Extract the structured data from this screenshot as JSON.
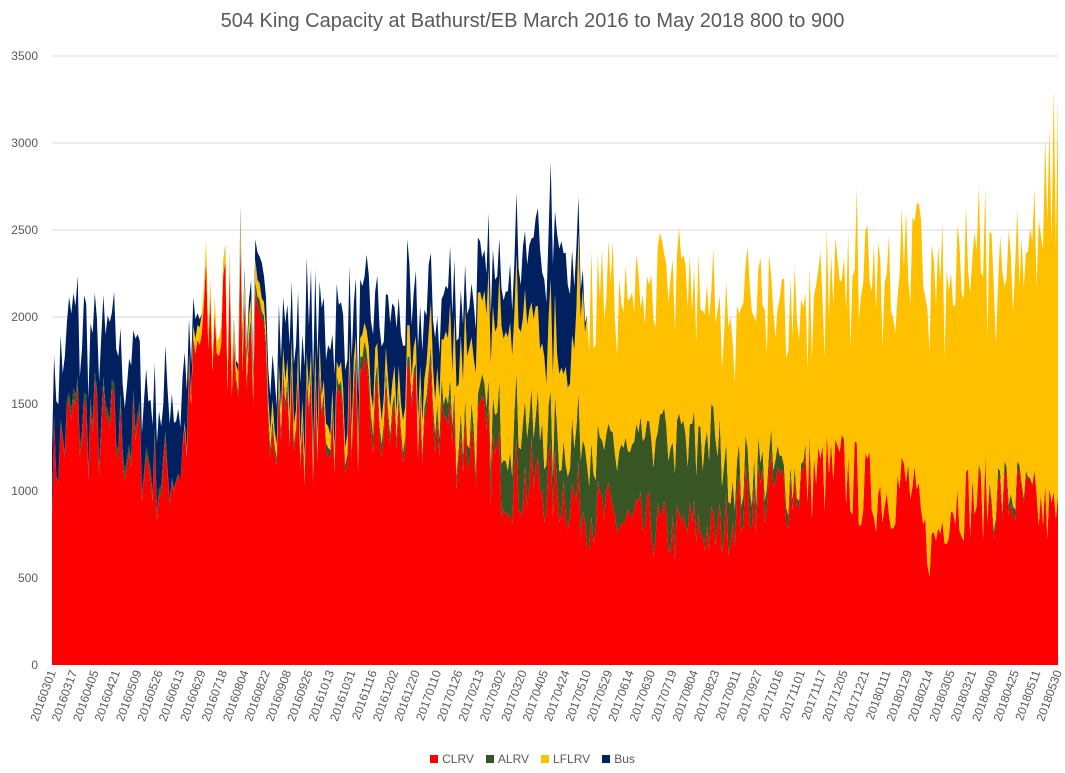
{
  "chart_data": {
    "type": "area",
    "stacked": true,
    "title": "504 King Capacity at Bathurst/EB March 2016 to May 2018  800 to 900",
    "xlabel": "",
    "ylabel": "",
    "ylim": [
      0,
      3500
    ],
    "yticks": [
      0,
      500,
      1000,
      1500,
      2000,
      2500,
      3000,
      3500
    ],
    "grid": true,
    "legend_position": "bottom",
    "categories": [
      "20160301",
      "20160317",
      "20160405",
      "20160421",
      "20160509",
      "20160526",
      "20160613",
      "20160629",
      "20160718",
      "20160804",
      "20160822",
      "20160908",
      "20160926",
      "20161013",
      "20161031",
      "20161116",
      "20161202",
      "20161220",
      "20170110",
      "20170126",
      "20170213",
      "20170302",
      "20170320",
      "20170405",
      "20170424",
      "20170510",
      "20170529",
      "20170614",
      "20170630",
      "20170719",
      "20170804",
      "20170823",
      "20170911",
      "20170927",
      "20171016",
      "20171101",
      "20171117",
      "20171205",
      "20171221",
      "20180111",
      "20180129",
      "20180214",
      "20180305",
      "20180321",
      "20180409",
      "20180425",
      "20180511",
      "20180530"
    ],
    "series": [
      {
        "name": "CLRV",
        "color": "#FF0000",
        "values": [
          1150,
          1400,
          1350,
          1300,
          1250,
          1050,
          1150,
          1900,
          1950,
          1950,
          1600,
          1450,
          1350,
          1400,
          1450,
          1400,
          1350,
          1400,
          1450,
          1300,
          1300,
          1100,
          1050,
          1050,
          1000,
          900,
          850,
          800,
          800,
          750,
          800,
          750,
          900,
          1000,
          1000,
          1050,
          1100,
          1100,
          1000,
          1000,
          1050,
          650,
          950,
          950,
          950,
          950,
          900,
          850
        ]
      },
      {
        "name": "ALRV",
        "color": "#375623",
        "values": [
          0,
          50,
          50,
          50,
          50,
          50,
          0,
          0,
          0,
          50,
          50,
          50,
          50,
          50,
          50,
          100,
          50,
          50,
          100,
          100,
          100,
          250,
          400,
          300,
          300,
          400,
          400,
          400,
          450,
          500,
          500,
          500,
          200,
          150,
          100,
          50,
          0,
          0,
          0,
          0,
          0,
          0,
          0,
          0,
          50,
          50,
          0,
          0
        ]
      },
      {
        "name": "LFLRV",
        "color": "#FFC000",
        "values": [
          0,
          0,
          0,
          0,
          0,
          0,
          0,
          100,
          100,
          100,
          100,
          100,
          100,
          100,
          100,
          150,
          150,
          150,
          250,
          450,
          500,
          650,
          600,
          550,
          500,
          900,
          900,
          800,
          850,
          900,
          800,
          850,
          950,
          950,
          900,
          950,
          1000,
          1100,
          1300,
          1300,
          1250,
          1500,
          1300,
          1350,
          1300,
          1350,
          1400,
          2000
        ]
      },
      {
        "name": "Bus",
        "color": "#002060",
        "values": [
          400,
          500,
          450,
          450,
          450,
          400,
          400,
          0,
          0,
          50,
          200,
          350,
          450,
          400,
          350,
          350,
          400,
          400,
          300,
          300,
          300,
          250,
          350,
          550,
          600,
          0,
          0,
          0,
          0,
          0,
          0,
          0,
          0,
          0,
          0,
          0,
          0,
          0,
          0,
          0,
          0,
          0,
          0,
          0,
          0,
          0,
          0,
          0
        ]
      }
    ]
  }
}
